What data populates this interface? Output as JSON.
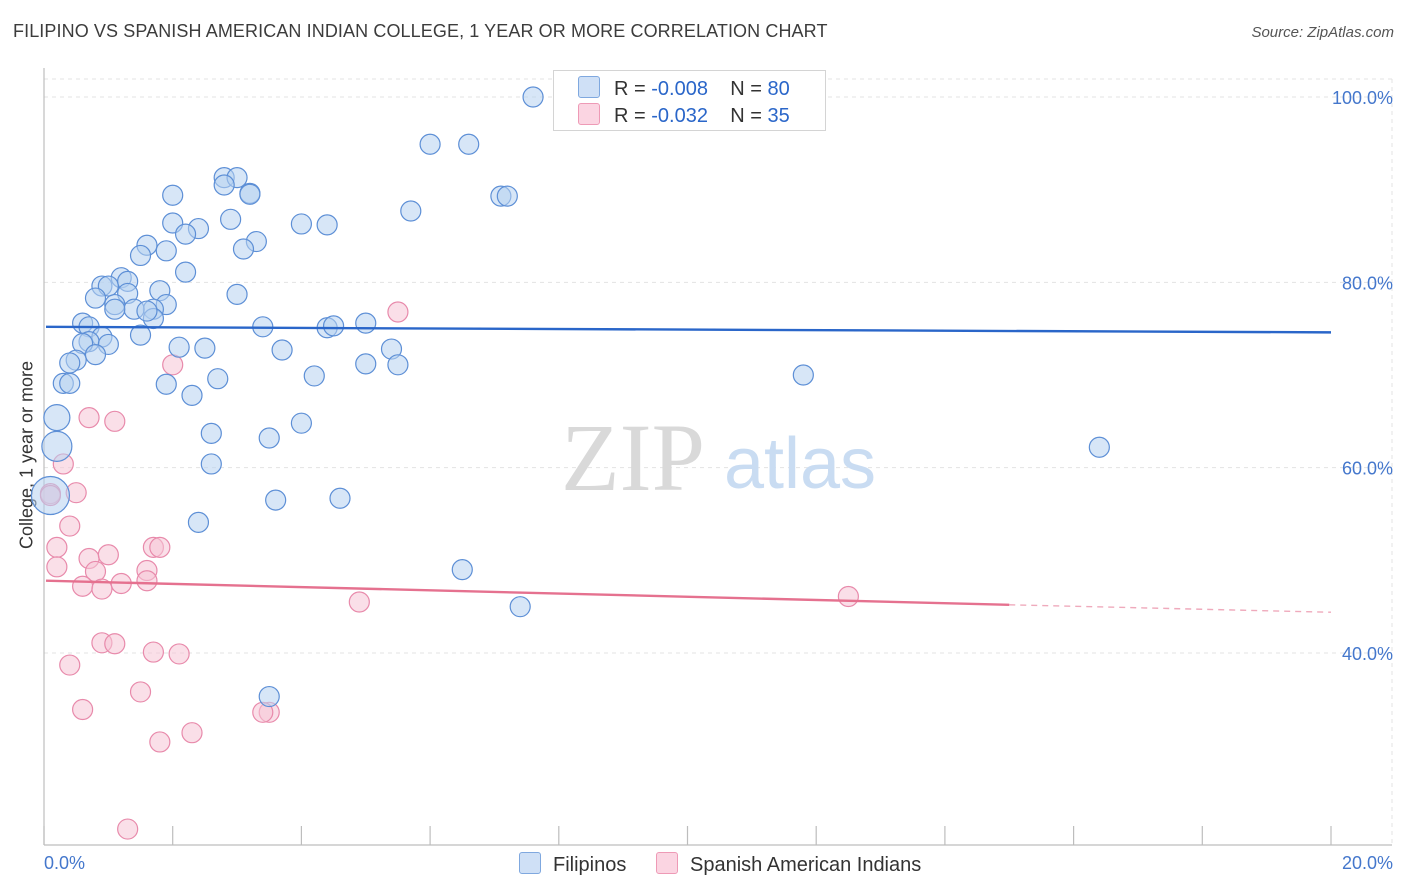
{
  "header": {
    "title": "FILIPINO VS SPANISH AMERICAN INDIAN COLLEGE, 1 YEAR OR MORE CORRELATION CHART",
    "source": "Source: ZipAtlas.com"
  },
  "watermark": {
    "zip": "ZIP",
    "atlas": "atlas"
  },
  "legend": {
    "rows": [
      {
        "r_label": "R =",
        "r_value": "-0.008",
        "n_label": "N =",
        "n_value": "80",
        "color": "#a9c8ee"
      },
      {
        "r_label": "R =",
        "r_value": "-0.032",
        "n_label": "N =",
        "n_value": "35",
        "color": "#f6bfd2"
      }
    ]
  },
  "bottom_legend": {
    "items": [
      {
        "label": "Filipinos",
        "color": "#a9c8ee"
      },
      {
        "label": "Spanish American Indians",
        "color": "#f6bfd2"
      }
    ]
  },
  "chart_data": {
    "type": "scatter",
    "title": "FILIPINO VS SPANISH AMERICAN INDIAN COLLEGE, 1 YEAR OR MORE CORRELATION CHART",
    "xlabel": "",
    "ylabel": "College, 1 year or more",
    "xlim": [
      0,
      20
    ],
    "ylim": [
      20,
      102
    ],
    "x_tick_labels": [
      "0.0%",
      "20.0%"
    ],
    "y_ticks": [
      40,
      60,
      80,
      100
    ],
    "y_tick_labels": [
      "40.0%",
      "60.0%",
      "80.0%",
      "100.0%"
    ],
    "colors": {
      "filipinos": "#a9c8ee",
      "filipinos_line": "#2a66c9",
      "spanish": "#f6bfd2",
      "spanish_line": "#e5718f"
    },
    "series": [
      {
        "name": "Filipinos",
        "r": -0.008,
        "n": 80,
        "trend": {
          "x": [
            0,
            20
          ],
          "y": [
            75.2,
            74.6
          ]
        },
        "points": [
          [
            7.6,
            100.0
          ],
          [
            6.0,
            94.9
          ],
          [
            6.6,
            94.9
          ],
          [
            2.8,
            91.3
          ],
          [
            3.0,
            91.3
          ],
          [
            2.8,
            90.5
          ],
          [
            3.2,
            89.6
          ],
          [
            3.2,
            89.5
          ],
          [
            7.1,
            89.3
          ],
          [
            7.2,
            89.3
          ],
          [
            2.0,
            89.4
          ],
          [
            5.7,
            87.7
          ],
          [
            2.9,
            86.8
          ],
          [
            4.0,
            86.3
          ],
          [
            4.4,
            86.2
          ],
          [
            2.0,
            86.4
          ],
          [
            2.4,
            85.8
          ],
          [
            2.2,
            85.2
          ],
          [
            3.3,
            84.4
          ],
          [
            3.1,
            83.6
          ],
          [
            1.6,
            84.0
          ],
          [
            1.9,
            83.4
          ],
          [
            1.5,
            82.9
          ],
          [
            2.2,
            81.1
          ],
          [
            1.2,
            80.5
          ],
          [
            0.9,
            79.6
          ],
          [
            1.0,
            79.6
          ],
          [
            1.3,
            80.1
          ],
          [
            1.8,
            79.1
          ],
          [
            1.3,
            78.8
          ],
          [
            3.0,
            78.7
          ],
          [
            0.8,
            78.3
          ],
          [
            1.9,
            77.6
          ],
          [
            1.1,
            77.6
          ],
          [
            1.7,
            77.1
          ],
          [
            1.4,
            77.1
          ],
          [
            1.1,
            77.1
          ],
          [
            1.7,
            76.1
          ],
          [
            0.6,
            75.6
          ],
          [
            3.4,
            75.2
          ],
          [
            4.4,
            75.1
          ],
          [
            4.5,
            75.3
          ],
          [
            5.0,
            75.6
          ],
          [
            0.7,
            75.2
          ],
          [
            0.9,
            74.1
          ],
          [
            1.5,
            74.3
          ],
          [
            0.7,
            73.6
          ],
          [
            0.6,
            73.4
          ],
          [
            1.0,
            73.3
          ],
          [
            2.1,
            73.0
          ],
          [
            2.5,
            72.9
          ],
          [
            3.7,
            72.7
          ],
          [
            5.4,
            72.8
          ],
          [
            0.8,
            72.2
          ],
          [
            0.5,
            71.6
          ],
          [
            0.4,
            71.3
          ],
          [
            5.0,
            71.2
          ],
          [
            5.5,
            71.1
          ],
          [
            11.8,
            70.0
          ],
          [
            4.2,
            69.9
          ],
          [
            2.7,
            69.6
          ],
          [
            0.3,
            69.1
          ],
          [
            0.4,
            69.1
          ],
          [
            1.9,
            69.0
          ],
          [
            2.3,
            67.8
          ],
          [
            4.0,
            64.8
          ],
          [
            0.2,
            65.4
          ],
          [
            2.6,
            63.7
          ],
          [
            3.5,
            63.2
          ],
          [
            0.2,
            62.3
          ],
          [
            16.4,
            62.2
          ],
          [
            2.6,
            60.4
          ],
          [
            0.1,
            57.0
          ],
          [
            3.6,
            56.5
          ],
          [
            4.6,
            56.7
          ],
          [
            2.4,
            54.1
          ],
          [
            6.5,
            49.0
          ],
          [
            7.4,
            45.0
          ],
          [
            3.5,
            35.3
          ],
          [
            1.6,
            76.9
          ]
        ],
        "point_sizes": [
          10,
          10,
          10,
          10,
          10,
          10,
          10,
          10,
          10,
          10,
          10,
          10,
          10,
          10,
          10,
          10,
          10,
          10,
          10,
          10,
          10,
          10,
          10,
          10,
          10,
          10,
          10,
          10,
          10,
          10,
          10,
          10,
          10,
          10,
          10,
          10,
          10,
          10,
          10,
          10,
          10,
          10,
          10,
          10,
          10,
          10,
          10,
          10,
          10,
          10,
          10,
          10,
          10,
          10,
          10,
          10,
          10,
          10,
          10,
          10,
          10,
          10,
          10,
          10,
          10,
          10,
          13,
          10,
          10,
          15,
          10,
          10,
          19,
          10,
          10,
          10,
          10,
          10,
          10,
          10
        ]
      },
      {
        "name": "Spanish American Indians",
        "r": -0.032,
        "n": 35,
        "trend": {
          "x": [
            0,
            15
          ],
          "y": [
            47.8,
            45.2
          ]
        },
        "trend_dashed": {
          "x": [
            15,
            20
          ],
          "y": [
            45.2,
            44.4
          ]
        },
        "points": [
          [
            5.5,
            76.8
          ],
          [
            2.0,
            71.1
          ],
          [
            0.7,
            65.4
          ],
          [
            1.1,
            65.0
          ],
          [
            0.3,
            60.4
          ],
          [
            0.5,
            57.3
          ],
          [
            0.1,
            57.2
          ],
          [
            0.4,
            53.7
          ],
          [
            0.2,
            51.4
          ],
          [
            1.7,
            51.4
          ],
          [
            1.8,
            51.4
          ],
          [
            0.7,
            50.2
          ],
          [
            1.0,
            50.6
          ],
          [
            0.2,
            49.3
          ],
          [
            0.8,
            48.8
          ],
          [
            1.6,
            48.9
          ],
          [
            1.6,
            47.8
          ],
          [
            1.2,
            47.5
          ],
          [
            0.6,
            47.2
          ],
          [
            0.9,
            46.9
          ],
          [
            4.9,
            45.5
          ],
          [
            12.5,
            46.1
          ],
          [
            0.9,
            41.1
          ],
          [
            1.1,
            41.0
          ],
          [
            1.7,
            40.1
          ],
          [
            2.1,
            39.9
          ],
          [
            0.4,
            38.7
          ],
          [
            1.5,
            35.8
          ],
          [
            0.6,
            33.9
          ],
          [
            3.5,
            33.6
          ],
          [
            3.4,
            33.6
          ],
          [
            2.3,
            31.4
          ],
          [
            1.8,
            30.4
          ],
          [
            1.3,
            21.0
          ],
          [
            0.1,
            57.0
          ]
        ],
        "point_sizes": [
          10,
          10,
          10,
          10,
          10,
          10,
          10,
          10,
          10,
          10,
          10,
          10,
          10,
          10,
          10,
          10,
          10,
          10,
          10,
          10,
          10,
          10,
          10,
          10,
          10,
          10,
          10,
          10,
          10,
          10,
          10,
          10,
          10,
          10,
          10
        ]
      }
    ]
  }
}
